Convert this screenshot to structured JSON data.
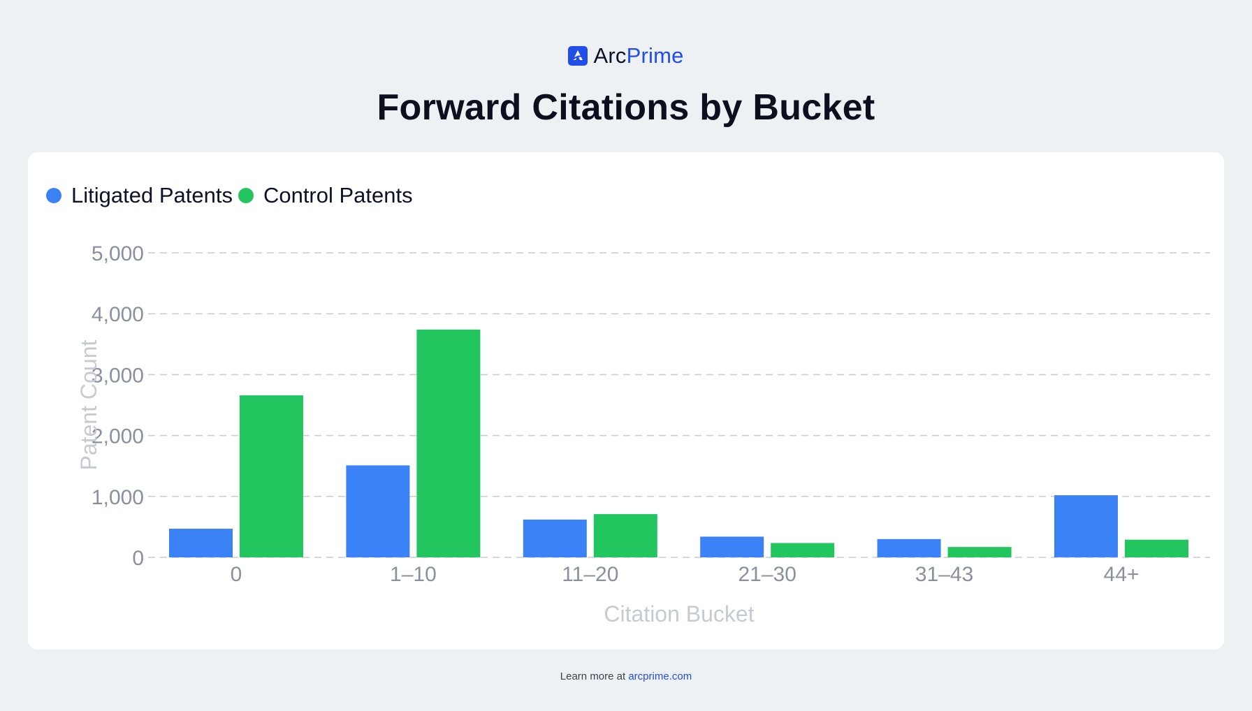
{
  "brand": {
    "name_part1": "Arc",
    "name_part2": "Prime"
  },
  "footer": {
    "prefix": "Learn more at ",
    "link_text": "arcprime.com"
  },
  "colors": {
    "litigated": "#3b82f6",
    "control": "#22c55e",
    "grid": "#c8ccd2",
    "tick": "#8a909c",
    "axis_title": "#c5cad3"
  },
  "chart_data": {
    "type": "bar",
    "title": "Forward Citations by Bucket",
    "xlabel": "Citation Bucket",
    "ylabel": "Patent Count",
    "categories": [
      "0",
      "1–10",
      "11–20",
      "21–30",
      "31–43",
      "44+"
    ],
    "series": [
      {
        "name": "Litigated Patents",
        "values": [
          470,
          1510,
          620,
          340,
          300,
          1020
        ]
      },
      {
        "name": "Control Patents",
        "values": [
          2660,
          3740,
          710,
          235,
          170,
          290
        ]
      }
    ],
    "ylim": [
      0,
      5000
    ],
    "yticks": [
      0,
      1000,
      2000,
      3000,
      4000,
      5000
    ],
    "ytick_labels": [
      "0",
      "1,000",
      "2,000",
      "3,000",
      "4,000",
      "5,000"
    ],
    "grid": true,
    "legend_position": "top-left"
  }
}
